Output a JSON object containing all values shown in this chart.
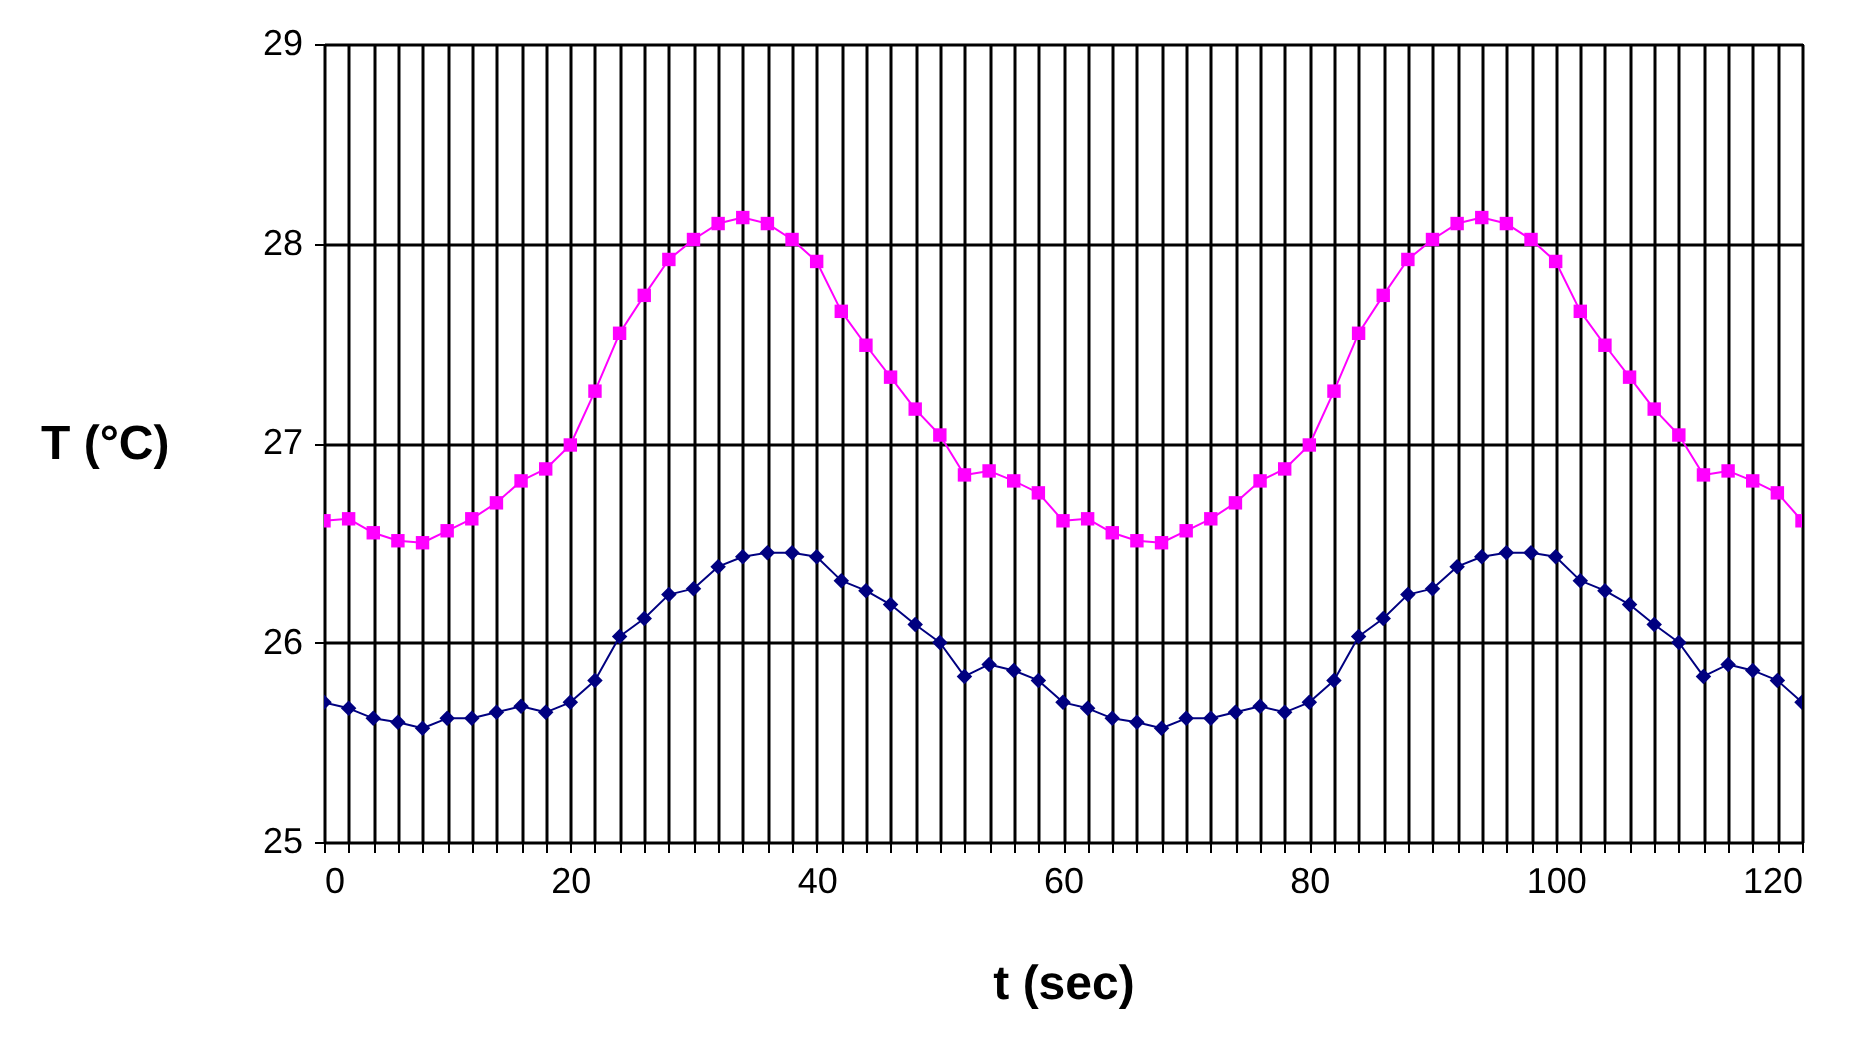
{
  "chart_data": {
    "type": "line",
    "xlabel": "t (sec)",
    "ylabel": "T (°C)",
    "x": [
      0,
      2,
      4,
      6,
      8,
      10,
      12,
      14,
      16,
      18,
      20,
      22,
      24,
      26,
      28,
      30,
      32,
      34,
      36,
      38,
      40,
      42,
      44,
      46,
      48,
      50,
      52,
      54,
      56,
      58,
      60,
      62,
      64,
      66,
      68,
      70,
      72,
      74,
      76,
      78,
      80,
      82,
      84,
      86,
      88,
      90,
      92,
      94,
      96,
      98,
      100,
      102,
      104,
      106,
      108,
      110,
      112,
      114,
      116,
      118,
      120
    ],
    "series": [
      {
        "color": "#ff00ff",
        "marker": "square",
        "values": [
          26.61,
          26.62,
          26.55,
          26.51,
          26.5,
          26.56,
          26.62,
          26.7,
          26.81,
          26.87,
          26.99,
          27.26,
          27.55,
          27.74,
          27.92,
          28.02,
          28.1,
          28.13,
          28.1,
          28.02,
          27.91,
          27.66,
          27.49,
          27.33,
          27.17,
          27.04,
          26.84,
          26.86,
          26.81,
          26.75,
          26.61,
          26.62,
          26.55,
          26.51,
          26.5,
          26.56,
          26.62,
          26.7,
          26.81,
          26.87,
          26.99,
          27.26,
          27.55,
          27.74,
          27.92,
          28.02,
          28.1,
          28.13,
          28.1,
          28.02,
          27.91,
          27.66,
          27.49,
          27.33,
          27.17,
          27.04,
          26.84,
          26.86,
          26.81,
          26.75,
          26.61
        ]
      },
      {
        "color": "#000080",
        "marker": "diamond",
        "values": [
          25.7,
          25.67,
          25.62,
          25.6,
          25.57,
          25.62,
          25.62,
          25.65,
          25.68,
          25.65,
          25.7,
          25.81,
          26.03,
          26.12,
          26.24,
          26.27,
          26.38,
          26.43,
          26.45,
          26.45,
          26.43,
          26.31,
          26.26,
          26.19,
          26.09,
          26.0,
          25.83,
          25.89,
          25.86,
          25.81,
          25.7,
          25.67,
          25.62,
          25.6,
          25.57,
          25.62,
          25.62,
          25.65,
          25.68,
          25.65,
          25.7,
          25.81,
          26.03,
          26.12,
          26.24,
          26.27,
          26.38,
          26.43,
          26.45,
          26.45,
          26.43,
          26.31,
          26.26,
          26.19,
          26.09,
          26.0,
          25.83,
          25.89,
          25.86,
          25.81,
          25.7
        ]
      }
    ],
    "xlim": [
      0,
      120
    ],
    "xticks": [
      0,
      {
        "value": 2,
        "label": null
      },
      {
        "value": 4,
        "label": null
      },
      {
        "value": 6,
        "label": null
      },
      {
        "value": 8,
        "label": null
      },
      {
        "value": 10,
        "label": null
      },
      {
        "value": 12,
        "label": null
      },
      {
        "value": 14,
        "label": null
      },
      {
        "value": 16,
        "label": null
      },
      {
        "value": 18,
        "label": null
      },
      20,
      {
        "value": 22,
        "label": null
      },
      {
        "value": 24,
        "label": null
      },
      {
        "value": 26,
        "label": null
      },
      {
        "value": 28,
        "label": null
      },
      {
        "value": 30,
        "label": null
      },
      {
        "value": 32,
        "label": null
      },
      {
        "value": 34,
        "label": null
      },
      {
        "value": 36,
        "label": null
      },
      {
        "value": 38,
        "label": null
      },
      40,
      {
        "value": 42,
        "label": null
      },
      {
        "value": 44,
        "label": null
      },
      {
        "value": 46,
        "label": null
      },
      {
        "value": 48,
        "label": null
      },
      {
        "value": 50,
        "label": null
      },
      {
        "value": 52,
        "label": null
      },
      {
        "value": 54,
        "label": null
      },
      {
        "value": 56,
        "label": null
      },
      {
        "value": 58,
        "label": null
      },
      60,
      {
        "value": 62,
        "label": null
      },
      {
        "value": 64,
        "label": null
      },
      {
        "value": 66,
        "label": null
      },
      {
        "value": 68,
        "label": null
      },
      {
        "value": 70,
        "label": null
      },
      {
        "value": 72,
        "label": null
      },
      {
        "value": 74,
        "label": null
      },
      {
        "value": 76,
        "label": null
      },
      {
        "value": 78,
        "label": null
      },
      80,
      {
        "value": 82,
        "label": null
      },
      {
        "value": 84,
        "label": null
      },
      {
        "value": 86,
        "label": null
      },
      {
        "value": 88,
        "label": null
      },
      {
        "value": 90,
        "label": null
      },
      {
        "value": 92,
        "label": null
      },
      {
        "value": 94,
        "label": null
      },
      {
        "value": 96,
        "label": null
      },
      {
        "value": 98,
        "label": null
      },
      100,
      {
        "value": 102,
        "label": null
      },
      {
        "value": 104,
        "label": null
      },
      {
        "value": 106,
        "label": null
      },
      {
        "value": 108,
        "label": null
      },
      {
        "value": 110,
        "label": null
      },
      {
        "value": 112,
        "label": null
      },
      {
        "value": 114,
        "label": null
      },
      {
        "value": 116,
        "label": null
      },
      {
        "value": 118,
        "label": null
      },
      120
    ],
    "ylim": [
      25,
      29
    ],
    "yticks": [
      25,
      26,
      27,
      28,
      29
    ],
    "grid": true,
    "line_style": "solid"
  }
}
